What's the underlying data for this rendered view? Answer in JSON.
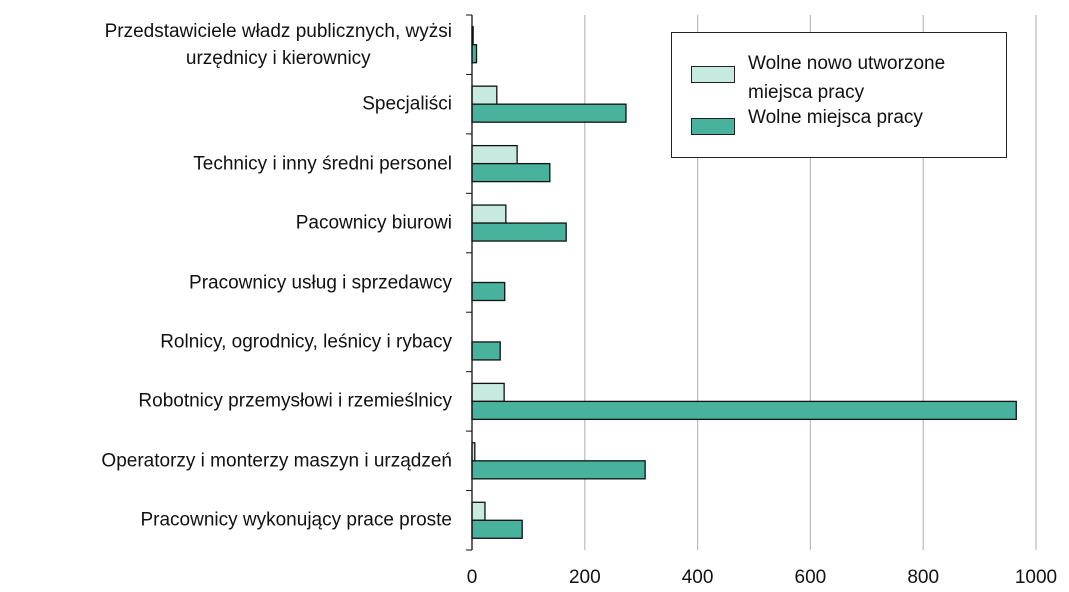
{
  "chart_data": {
    "type": "barh",
    "categories": [
      "Przedstawiciele władz publicznych, wyżsi\nurzędnicy i kierownicy",
      "Specjaliści",
      "Technicy i inny średni personel",
      "Pacownicy biurowi",
      "Pracownicy usług i sprzedawcy",
      "Rolnicy, ogrodnicy, leśnicy i rybacy",
      "Robotnicy przemysłowi i rzemieślnicy",
      "Operatorzy i monterzy maszyn i urządzeń",
      "Pracownicy wykonujący prace proste"
    ],
    "series": [
      {
        "name": "Wolne nowo utworzone\n  miejsca pracy",
        "color": "#c6e9e0",
        "values": [
          2,
          44,
          80,
          60,
          0,
          0,
          57,
          5,
          23
        ]
      },
      {
        "name": "Wolne miejsca pracy",
        "color": "#48b29c",
        "values": [
          8,
          273,
          138,
          167,
          58,
          50,
          965,
          307,
          89
        ]
      }
    ],
    "xlim": [
      0,
      1000
    ],
    "xticks": [
      0,
      200,
      400,
      600,
      800,
      1000
    ],
    "grid": true,
    "legend": "upper right"
  }
}
